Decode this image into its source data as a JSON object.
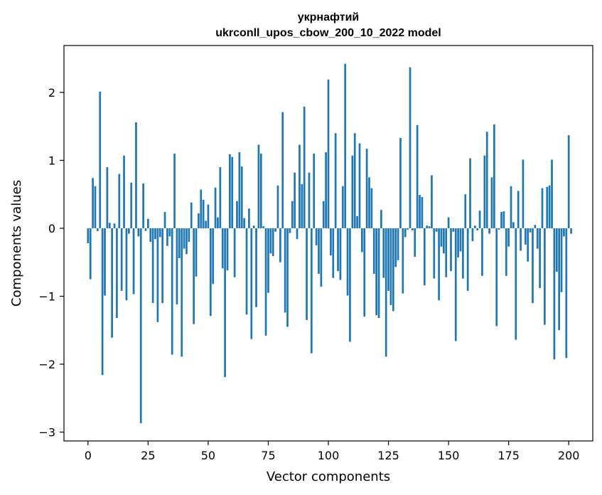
{
  "chart_data": {
    "type": "bar",
    "title_line1": "укрнафтий",
    "title_line2": "ukrconll_upos_cbow_200_10_2022 model",
    "xlabel": "Vector components",
    "ylabel": "Components values",
    "xlim": [
      -10,
      210
    ],
    "ylim": [
      -3.13,
      2.69
    ],
    "xticks": [
      0,
      25,
      50,
      75,
      100,
      125,
      150,
      175,
      200
    ],
    "yticks": [
      -3,
      -2,
      -1,
      0,
      1,
      2
    ],
    "ytick_labels": [
      "−3",
      "−2",
      "−1",
      "0",
      "1",
      "2"
    ],
    "bar_color": "#1f77b4",
    "grid": false,
    "legend": "none",
    "values": [
      -0.22,
      -0.75,
      0.74,
      0.62,
      -0.04,
      2.01,
      -2.16,
      -0.99,
      0.9,
      0.08,
      -1.61,
      0.07,
      -1.32,
      0.8,
      -0.92,
      1.07,
      -1.06,
      -0.08,
      0.67,
      -0.97,
      1.56,
      -0.12,
      -2.87,
      0.66,
      -0.04,
      0.14,
      -0.2,
      -1.1,
      -0.16,
      -1.38,
      -0.13,
      -1.1,
      0.24,
      -0.26,
      -0.12,
      -1.86,
      1.1,
      -1.12,
      -0.44,
      -1.89,
      -0.3,
      -0.38,
      -0.2,
      0.38,
      -1.41,
      -0.71,
      0.22,
      0.57,
      0.42,
      0.11,
      0.35,
      -1.29,
      -0.82,
      0.6,
      0.16,
      0.9,
      -0.59,
      -2.19,
      -0.62,
      1.09,
      1.05,
      -0.72,
      0.4,
      1.12,
      0.91,
      0.15,
      -1.27,
      0.29,
      -1.63,
      0.04,
      -1.16,
      1.23,
      1.1,
      0.03,
      -1.58,
      -0.95,
      -0.37,
      -0.41,
      -0.05,
      0.63,
      -0.5,
      1.71,
      -1.24,
      -1.45,
      -0.07,
      0.4,
      0.82,
      -0.16,
      1.23,
      0.65,
      1.79,
      -1.35,
      0.82,
      -1.84,
      1.1,
      -0.25,
      -0.67,
      -0.86,
      0.4,
      1.12,
      2.19,
      -0.4,
      -0.73,
      1.4,
      -0.63,
      -0.76,
      0.62,
      2.42,
      -0.99,
      -1.67,
      1.07,
      1.4,
      0.18,
      1.25,
      -0.35,
      -1.3,
      1.17,
      0.75,
      0.59,
      -0.67,
      -1.28,
      -1.32,
      0.27,
      -0.73,
      -1.89,
      -0.92,
      -1.13,
      -1.22,
      -0.57,
      -0.47,
      1.33,
      -0.96,
      -0.13,
      -0.02,
      2.37,
      -0.03,
      -0.42,
      1.52,
      0.49,
      0.46,
      -0.84,
      0.04,
      0.03,
      0.78,
      -0.74,
      -0.05,
      -1.06,
      -0.27,
      -0.37,
      -0.72,
      0.16,
      -0.63,
      -0.05,
      -1.66,
      -0.43,
      -0.34,
      -0.74,
      0.5,
      -0.92,
      1.03,
      -0.19,
      0.04,
      -0.03,
      0.26,
      -0.7,
      1.07,
      1.42,
      -0.08,
      0.75,
      1.53,
      -1.44,
      -0.02,
      0.24,
      0.25,
      -0.7,
      -0.27,
      0.62,
      0.09,
      -1.64,
      0.55,
      -0.33,
      1.01,
      -0.24,
      -0.49,
      -0.06,
      -1.1,
      0.05,
      -0.3,
      -0.88,
      0.59,
      -1.42,
      0.61,
      0.63,
      1.01,
      -1.93,
      -0.64,
      -1.5,
      -0.94,
      -0.12,
      -1.91,
      1.37,
      -0.08
    ]
  }
}
